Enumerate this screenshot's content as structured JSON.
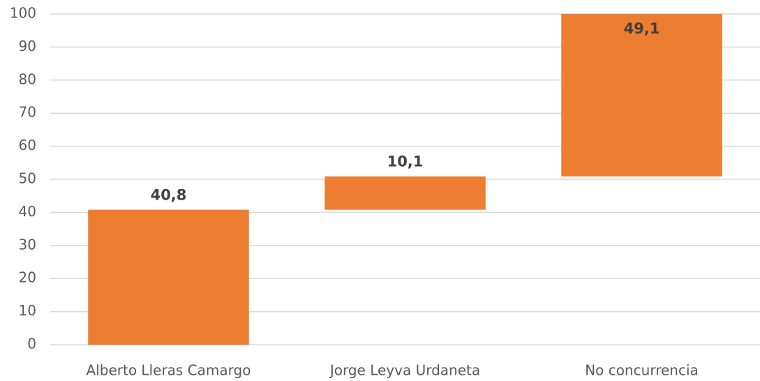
{
  "chart_data": {
    "type": "waterfall",
    "categories": [
      "Alberto Lleras Camargo",
      "Jorge Leyva Urdaneta",
      "No concurrencia"
    ],
    "values": [
      40.8,
      10.1,
      49.1
    ],
    "value_labels": [
      "40,8",
      "10,1",
      "49,1"
    ],
    "color": "#ed7d31",
    "ylim": [
      0,
      100
    ],
    "yticks": [
      0,
      10,
      20,
      30,
      40,
      50,
      60,
      70,
      80,
      90,
      100
    ],
    "grid": true
  }
}
